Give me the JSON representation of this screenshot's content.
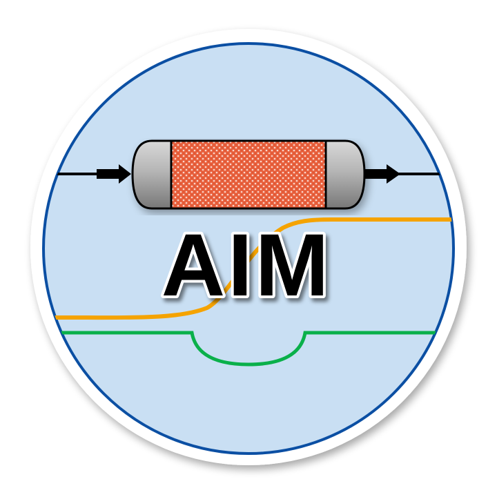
{
  "logo": {
    "text": "AIM",
    "colors": {
      "disc_fill": "#c9dff3",
      "disc_border": "#0b4fa3",
      "outer_ring": "#ffffff",
      "reactor_packing": "#e8603c",
      "reactor_caps": "#a8a8a8",
      "text_fill": "#000000",
      "text_outline": "#ffffff",
      "orange_curve": "#f5a300",
      "green_curve": "#0ab04a",
      "arrow": "#000000"
    },
    "icons": {
      "reactor": "packed-bed-reactor-icon",
      "inlet": "inlet-arrow-icon",
      "outlet": "outlet-arrow-icon"
    }
  }
}
